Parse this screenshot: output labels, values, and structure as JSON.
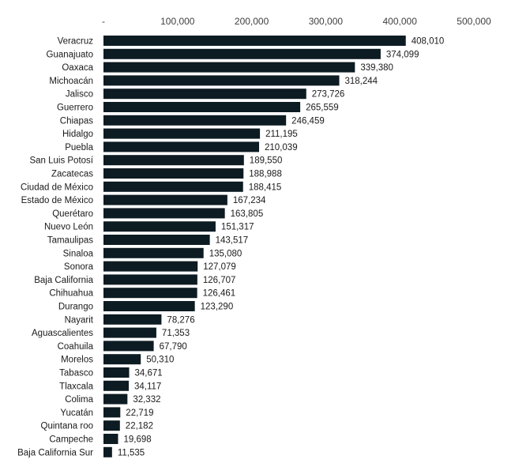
{
  "chart_data": {
    "type": "bar",
    "orientation": "horizontal",
    "bar_color": "#0d1b22",
    "xlim": [
      0,
      500000
    ],
    "x_ticks": [
      {
        "value": 0,
        "label": "-"
      },
      {
        "value": 100000,
        "label": "100,000"
      },
      {
        "value": 200000,
        "label": "200,000"
      },
      {
        "value": 300000,
        "label": "300,000"
      },
      {
        "value": 400000,
        "label": "400,000"
      },
      {
        "value": 500000,
        "label": "500,000"
      }
    ],
    "x_axis_position": "top",
    "grid": false,
    "categories": [
      "Veracruz",
      "Guanajuato",
      "Oaxaca",
      "Michoacán",
      "Jalisco",
      "Guerrero",
      "Chiapas",
      "Hidalgo",
      "Puebla",
      "San Luis Potosí",
      "Zacatecas",
      "Ciudad de México",
      "Estado de México",
      "Querétaro",
      "Nuevo León",
      "Tamaulipas",
      "Sinaloa",
      "Sonora",
      "Baja California",
      "Chihuahua",
      "Durango",
      "Nayarit",
      "Aguascalientes",
      "Coahuila",
      "Morelos",
      "Tabasco",
      "Tlaxcala",
      "Colima",
      "Yucatán",
      "Quintana roo",
      "Campeche",
      "Baja California Sur"
    ],
    "values": [
      408010,
      374099,
      339380,
      318244,
      273726,
      265559,
      246459,
      211195,
      210039,
      189550,
      188988,
      188415,
      167234,
      163805,
      151317,
      143517,
      135080,
      127079,
      126707,
      126461,
      123290,
      78276,
      71353,
      67790,
      50310,
      34671,
      34117,
      32332,
      22719,
      22182,
      19698,
      11535
    ],
    "value_labels": [
      "408,010",
      "374,099",
      "339,380",
      "318,244",
      "273,726",
      "265,559",
      "246,459",
      "211,195",
      "210,039",
      "189,550",
      "188,988",
      "188,415",
      "167,234",
      "163,805",
      "151,317",
      "143,517",
      "135,080",
      "127,079",
      "126,707",
      "126,461",
      "123,290",
      "78,276",
      "71,353",
      "67,790",
      "50,310",
      "34,671",
      "34,117",
      "32,332",
      "22,719",
      "22,182",
      "19,698",
      "11,535"
    ]
  }
}
